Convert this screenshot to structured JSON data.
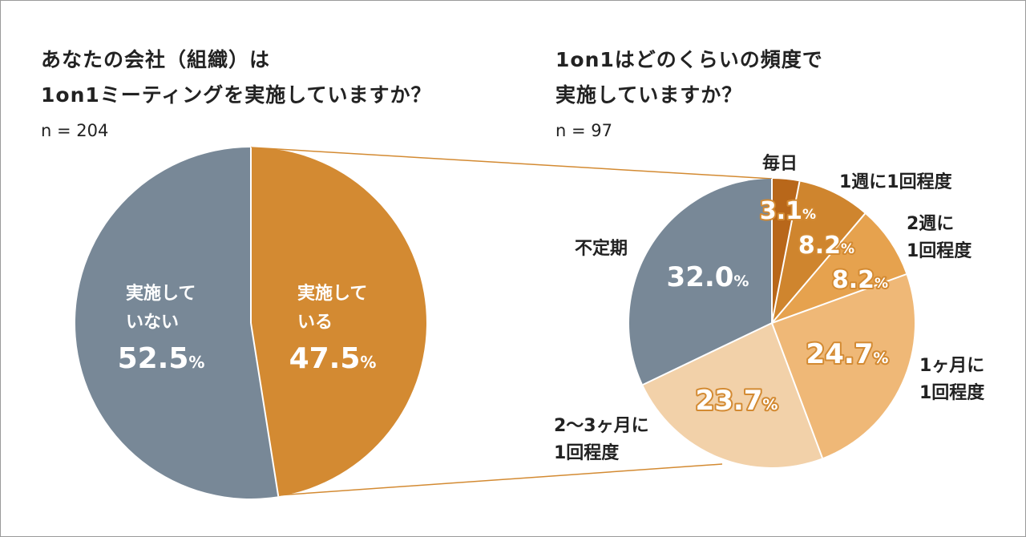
{
  "left_title": {
    "line1": "あなたの会社（組織）は",
    "line2": "1on1ミーティングを実施していますか？"
  },
  "left_n": "n = 204",
  "right_title": {
    "line1": "1on1はどのくらいの頻度で",
    "line2": "実施していますか？"
  },
  "right_n": "n = 97",
  "percent_sign": "%",
  "chart_data": [
    {
      "type": "pie",
      "n": 204,
      "slices": [
        {
          "label_lines": [
            "実施して",
            "いる"
          ],
          "value": 47.5,
          "value_text": "47.5",
          "color": "#d38a32"
        },
        {
          "label_lines": [
            "実施して",
            "いない"
          ],
          "value": 52.5,
          "value_text": "52.5",
          "color": "#788897"
        }
      ]
    },
    {
      "type": "pie",
      "n": 97,
      "slices": [
        {
          "label_lines": [
            "毎日"
          ],
          "value": 3.1,
          "value_text": "3.1",
          "color": "#b8671a"
        },
        {
          "label_lines": [
            "1週に1回程度"
          ],
          "value": 8.2,
          "value_text": "8.2",
          "color": "#cf852e"
        },
        {
          "label_lines": [
            "2週に",
            "1回程度"
          ],
          "value": 8.2,
          "value_text": "8.2",
          "color": "#e6a24e"
        },
        {
          "label_lines": [
            "1ヶ月に",
            "1回程度"
          ],
          "value": 24.7,
          "value_text": "24.7",
          "color": "#efb877"
        },
        {
          "label_lines": [
            "2〜3ヶ月に",
            "1回程度"
          ],
          "value": 23.7,
          "value_text": "23.7",
          "color": "#f2d1a9"
        },
        {
          "label_lines": [
            "不定期"
          ],
          "value": 32.0,
          "value_text": "32.0",
          "color": "#788897"
        }
      ]
    }
  ],
  "colors": {
    "connector": "#d38a32",
    "separator": "#ffffff",
    "text_dark": "#222222",
    "text_on_gray": "#ffffff",
    "value_outline": "#d38a32"
  }
}
